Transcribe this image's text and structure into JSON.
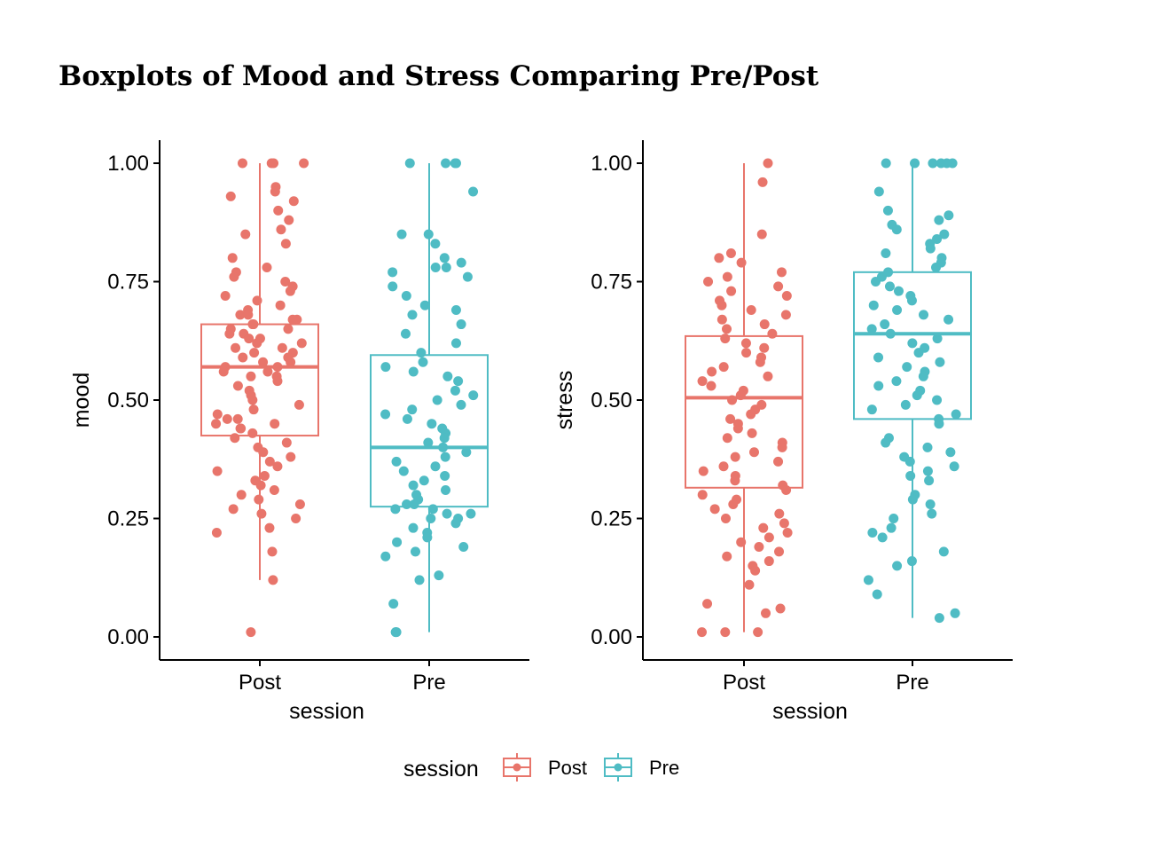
{
  "figure": {
    "title": "Boxplots of Mood and Stress Comparing Pre/Post"
  },
  "legend": {
    "title": "session",
    "placement": "bottom",
    "items": [
      {
        "label": "Post",
        "color": "#E8756B"
      },
      {
        "label": "Pre",
        "color": "#4FBCC4"
      }
    ]
  },
  "chart_data": [
    {
      "type": "boxplot",
      "xlabel": "session",
      "ylabel": "mood",
      "ylim": [
        0,
        1
      ],
      "yticks": [
        "0.00",
        "0.25",
        "0.50",
        "0.75",
        "1.00"
      ],
      "categories": [
        "Post",
        "Pre"
      ],
      "boxes": [
        {
          "category": "Post",
          "color": "#E8756B",
          "min": 0.12,
          "q1": 0.425,
          "median": 0.57,
          "q3": 0.66,
          "max": 1.0,
          "points": [
            1.0,
            1.0,
            1.0,
            1.0,
            0.95,
            0.94,
            0.93,
            0.92,
            0.9,
            0.88,
            0.86,
            0.85,
            0.83,
            0.8,
            0.78,
            0.77,
            0.76,
            0.75,
            0.74,
            0.73,
            0.72,
            0.71,
            0.7,
            0.69,
            0.68,
            0.68,
            0.67,
            0.67,
            0.66,
            0.66,
            0.65,
            0.65,
            0.64,
            0.64,
            0.63,
            0.63,
            0.62,
            0.62,
            0.61,
            0.61,
            0.6,
            0.6,
            0.59,
            0.59,
            0.58,
            0.58,
            0.57,
            0.57,
            0.56,
            0.56,
            0.55,
            0.55,
            0.54,
            0.53,
            0.52,
            0.51,
            0.5,
            0.49,
            0.48,
            0.47,
            0.46,
            0.46,
            0.45,
            0.45,
            0.44,
            0.44,
            0.43,
            0.42,
            0.41,
            0.4,
            0.39,
            0.38,
            0.37,
            0.36,
            0.35,
            0.34,
            0.33,
            0.32,
            0.31,
            0.3,
            0.29,
            0.28,
            0.27,
            0.26,
            0.25,
            0.23,
            0.22,
            0.18,
            0.12,
            0.01
          ]
        },
        {
          "category": "Pre",
          "color": "#4FBCC4",
          "min": 0.01,
          "q1": 0.275,
          "median": 0.4,
          "q3": 0.595,
          "max": 1.0,
          "points": [
            1.0,
            1.0,
            1.0,
            1.0,
            0.94,
            0.85,
            0.85,
            0.83,
            0.8,
            0.79,
            0.78,
            0.78,
            0.77,
            0.76,
            0.74,
            0.72,
            0.7,
            0.69,
            0.68,
            0.66,
            0.64,
            0.62,
            0.6,
            0.58,
            0.57,
            0.56,
            0.55,
            0.54,
            0.52,
            0.51,
            0.5,
            0.49,
            0.48,
            0.47,
            0.46,
            0.45,
            0.44,
            0.43,
            0.42,
            0.41,
            0.4,
            0.39,
            0.38,
            0.37,
            0.36,
            0.35,
            0.34,
            0.33,
            0.32,
            0.31,
            0.3,
            0.29,
            0.28,
            0.28,
            0.27,
            0.27,
            0.26,
            0.26,
            0.25,
            0.25,
            0.24,
            0.23,
            0.22,
            0.21,
            0.2,
            0.19,
            0.18,
            0.17,
            0.13,
            0.12,
            0.07,
            0.01,
            0.01,
            0.01
          ]
        }
      ]
    },
    {
      "type": "boxplot",
      "xlabel": "session",
      "ylabel": "stress",
      "ylim": [
        0,
        1
      ],
      "yticks": [
        "0.00",
        "0.25",
        "0.50",
        "0.75",
        "1.00"
      ],
      "categories": [
        "Post",
        "Pre"
      ],
      "boxes": [
        {
          "category": "Post",
          "color": "#E8756B",
          "min": 0.01,
          "q1": 0.315,
          "median": 0.505,
          "q3": 0.635,
          "max": 1.0,
          "points": [
            1.0,
            0.96,
            0.85,
            0.81,
            0.8,
            0.79,
            0.77,
            0.76,
            0.75,
            0.74,
            0.73,
            0.72,
            0.71,
            0.7,
            0.69,
            0.68,
            0.67,
            0.66,
            0.65,
            0.64,
            0.63,
            0.62,
            0.61,
            0.6,
            0.59,
            0.58,
            0.57,
            0.56,
            0.55,
            0.54,
            0.53,
            0.52,
            0.51,
            0.5,
            0.49,
            0.48,
            0.47,
            0.46,
            0.45,
            0.44,
            0.43,
            0.42,
            0.41,
            0.4,
            0.39,
            0.38,
            0.37,
            0.36,
            0.35,
            0.34,
            0.33,
            0.32,
            0.31,
            0.3,
            0.29,
            0.28,
            0.27,
            0.26,
            0.25,
            0.24,
            0.23,
            0.22,
            0.21,
            0.2,
            0.19,
            0.18,
            0.17,
            0.16,
            0.15,
            0.14,
            0.11,
            0.07,
            0.06,
            0.05,
            0.01,
            0.01,
            0.01
          ]
        },
        {
          "category": "Pre",
          "color": "#4FBCC4",
          "min": 0.04,
          "q1": 0.46,
          "median": 0.64,
          "q3": 0.77,
          "max": 1.0,
          "points": [
            1.0,
            1.0,
            1.0,
            1.0,
            1.0,
            1.0,
            0.94,
            0.9,
            0.89,
            0.88,
            0.87,
            0.86,
            0.85,
            0.84,
            0.83,
            0.82,
            0.81,
            0.8,
            0.79,
            0.78,
            0.77,
            0.76,
            0.75,
            0.74,
            0.73,
            0.72,
            0.71,
            0.7,
            0.69,
            0.68,
            0.67,
            0.66,
            0.65,
            0.64,
            0.63,
            0.62,
            0.61,
            0.6,
            0.59,
            0.58,
            0.57,
            0.56,
            0.55,
            0.54,
            0.53,
            0.52,
            0.51,
            0.5,
            0.49,
            0.48,
            0.47,
            0.46,
            0.45,
            0.42,
            0.41,
            0.4,
            0.39,
            0.38,
            0.37,
            0.36,
            0.35,
            0.34,
            0.33,
            0.3,
            0.29,
            0.28,
            0.26,
            0.25,
            0.23,
            0.22,
            0.21,
            0.18,
            0.16,
            0.15,
            0.12,
            0.09,
            0.05,
            0.04
          ]
        }
      ]
    }
  ]
}
